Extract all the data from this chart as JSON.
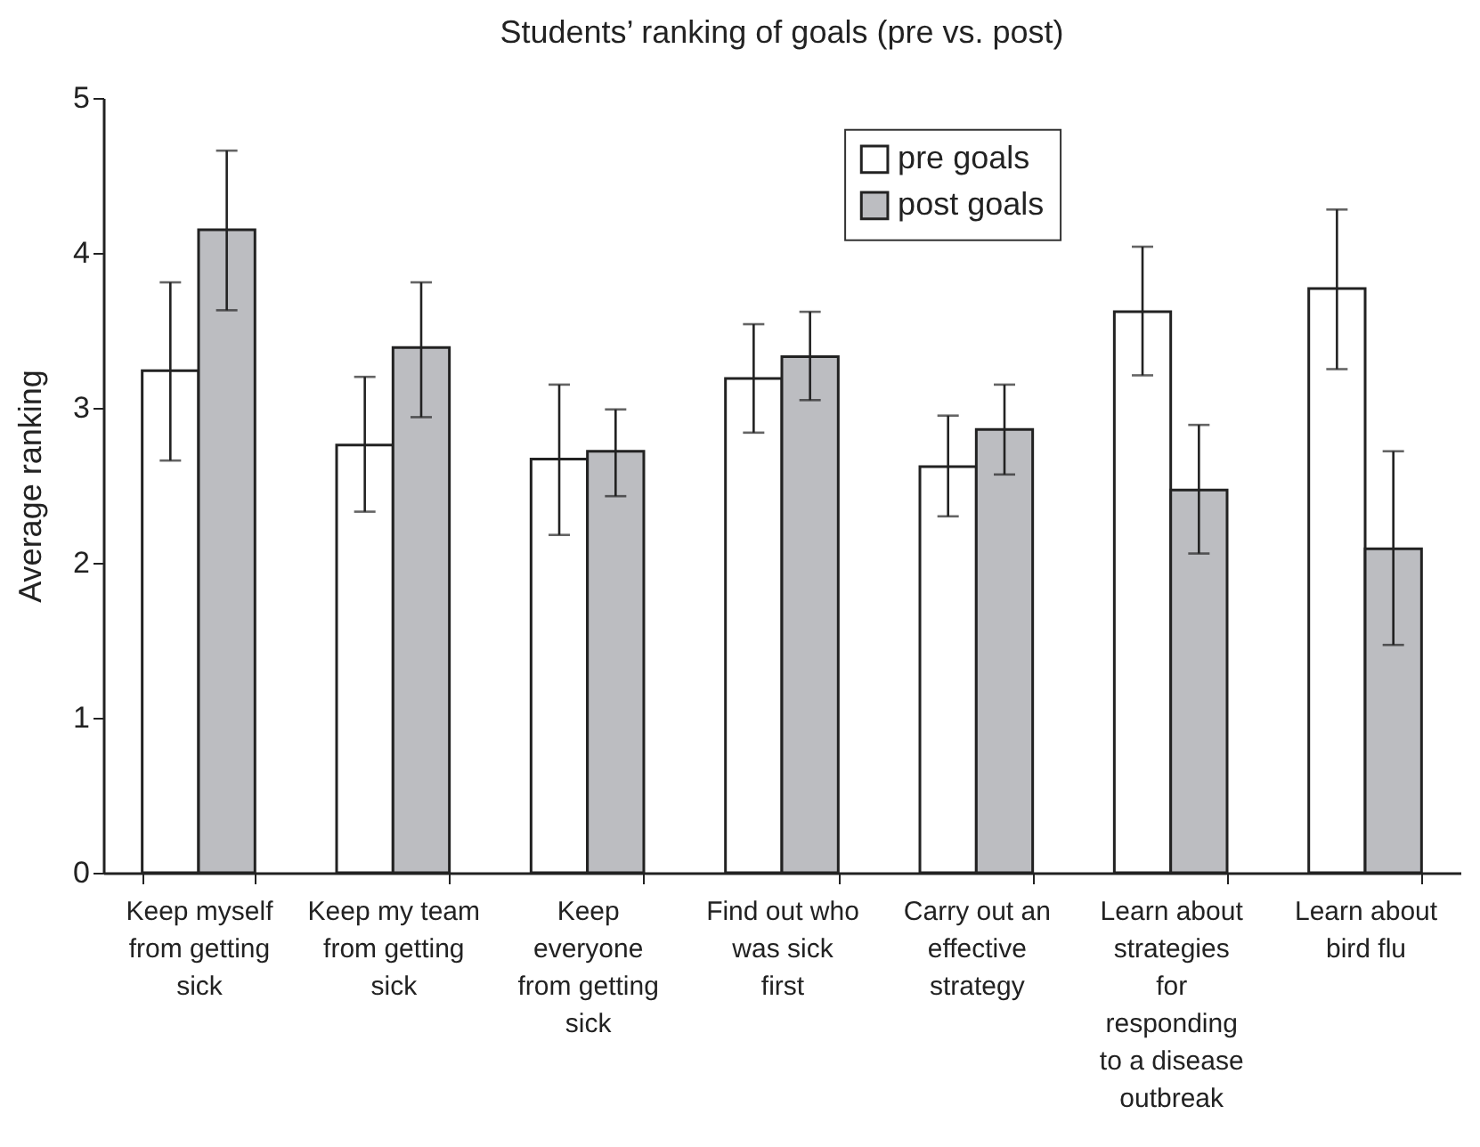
{
  "chart_data": {
    "type": "bar",
    "title": "Students’ ranking of goals (pre vs. post)",
    "ylabel": "Average ranking",
    "categories": [
      "Keep myself from getting sick",
      "Keep my team from getting sick",
      "Keep everyone from getting sick",
      "Find out who was sick first",
      "Carry out an effective strategy",
      "Learn about strategies for responding to a disease outbreak",
      "Learn about bird flu"
    ],
    "series": [
      {
        "name": "pre goals",
        "color": "#ffffff",
        "values": [
          3.24,
          2.76,
          2.67,
          3.19,
          2.62,
          3.62,
          3.77
        ],
        "errors": [
          [
            2.66,
            3.81
          ],
          [
            2.33,
            3.2
          ],
          [
            2.18,
            3.15
          ],
          [
            2.84,
            3.54
          ],
          [
            2.3,
            2.95
          ],
          [
            3.21,
            4.04
          ],
          [
            3.25,
            4.28
          ]
        ]
      },
      {
        "name": "post goals",
        "color": "#bcbdc1",
        "values": [
          4.15,
          3.39,
          2.72,
          3.33,
          2.86,
          2.47,
          2.09
        ],
        "errors": [
          [
            3.63,
            4.66
          ],
          [
            2.94,
            3.81
          ],
          [
            2.43,
            2.99
          ],
          [
            3.05,
            3.62
          ],
          [
            2.57,
            3.15
          ],
          [
            2.06,
            2.89
          ],
          [
            1.47,
            2.72
          ]
        ]
      }
    ],
    "ylim": [
      0,
      5
    ],
    "yticks": [
      0,
      1,
      2,
      3,
      4,
      5
    ],
    "grid": false,
    "legend": "top right"
  }
}
